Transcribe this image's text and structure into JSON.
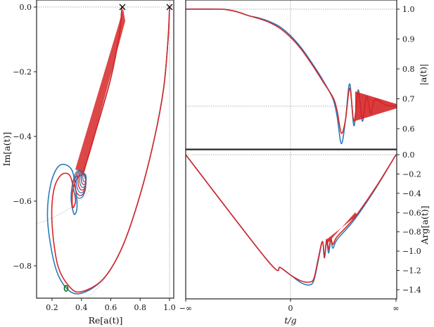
{
  "colors": {
    "blue": "#2b7bba",
    "red": "#d62728",
    "green": "#1a7a1a",
    "grid": "#999999",
    "axis": "#222222"
  },
  "chart_data": [
    {
      "type": "line",
      "panel": "left",
      "title": "",
      "xlabel": "Re[a(t)]",
      "ylabel": "Im[a(t)]",
      "xlim": [
        0.095,
        1.03
      ],
      "ylim": [
        -0.9,
        0.02
      ],
      "xticks": [
        "0.2",
        "0.4",
        "0.6",
        "0.8",
        "1.0"
      ],
      "yticks": [
        "0.0",
        "-0.2",
        "-0.4",
        "-0.6",
        "-0.8"
      ],
      "markers": [
        {
          "type": "x",
          "x": 0.675,
          "y": 0.0
        },
        {
          "type": "x",
          "x": 1.0,
          "y": 0.0
        },
        {
          "type": "circle",
          "color": "green",
          "x": 0.3,
          "y": -0.87
        }
      ],
      "reference_lines": [
        {
          "type": "horizontal",
          "y": 0.0
        },
        {
          "type": "vertical",
          "x": 1.0
        },
        {
          "type": "arc",
          "note": "dotted gray unit-magnitude reference curves"
        }
      ],
      "series": [
        {
          "name": "blue",
          "points": [
            [
              1.0,
              0.0
            ],
            [
              0.99,
              -0.1
            ],
            [
              0.96,
              -0.25
            ],
            [
              0.9,
              -0.4
            ],
            [
              0.8,
              -0.58
            ],
            [
              0.68,
              -0.74
            ],
            [
              0.55,
              -0.84
            ],
            [
              0.4,
              -0.885
            ],
            [
              0.3,
              -0.87
            ],
            [
              0.22,
              -0.8
            ],
            [
              0.17,
              -0.66
            ],
            [
              0.19,
              -0.55
            ],
            [
              0.25,
              -0.49
            ],
            [
              0.33,
              -0.5
            ],
            [
              0.36,
              -0.56
            ],
            [
              0.37,
              -0.62
            ],
            [
              0.35,
              -0.64
            ],
            [
              0.33,
              -0.59
            ],
            [
              0.35,
              -0.53
            ],
            [
              0.4,
              -0.52
            ],
            [
              0.42,
              -0.5
            ],
            [
              0.5,
              -0.38
            ],
            [
              0.6,
              -0.22
            ],
            [
              0.66,
              -0.08
            ],
            [
              0.675,
              0.0
            ]
          ]
        },
        {
          "name": "red",
          "points": [
            [
              1.0,
              0.0
            ],
            [
              0.99,
              -0.1
            ],
            [
              0.96,
              -0.25
            ],
            [
              0.9,
              -0.4
            ],
            [
              0.8,
              -0.58
            ],
            [
              0.68,
              -0.74
            ],
            [
              0.55,
              -0.84
            ],
            [
              0.4,
              -0.88
            ],
            [
              0.32,
              -0.865
            ],
            [
              0.24,
              -0.8
            ],
            [
              0.2,
              -0.67
            ],
            [
              0.21,
              -0.57
            ],
            [
              0.26,
              -0.52
            ],
            [
              0.32,
              -0.52
            ],
            [
              0.35,
              -0.57
            ],
            [
              0.36,
              -0.6
            ],
            [
              0.34,
              -0.62
            ],
            [
              0.34,
              -0.57
            ],
            [
              0.37,
              -0.53
            ],
            [
              0.42,
              -0.5
            ],
            [
              0.5,
              -0.38
            ],
            [
              0.6,
              -0.22
            ],
            [
              0.66,
              -0.08
            ],
            [
              0.675,
              0.0
            ]
          ]
        }
      ]
    },
    {
      "type": "line",
      "panel": "top-right",
      "xlabel": "",
      "ylabel": "|a(t)|",
      "xlim": [
        "-inf",
        "inf"
      ],
      "ylim": [
        0.53,
        1.03
      ],
      "yticks": [
        "0.6",
        "0.7",
        "0.8",
        "0.9",
        "1.0"
      ],
      "reference_lines": [
        {
          "type": "horizontal",
          "y": 1.0
        },
        {
          "type": "horizontal",
          "y": 0.675
        },
        {
          "type": "vertical",
          "x": 0
        }
      ],
      "series": [
        {
          "name": "blue",
          "x_frac": [
            0,
            0.15,
            0.2,
            0.25,
            0.3,
            0.35,
            0.4,
            0.45,
            0.5,
            0.55,
            0.6,
            0.65,
            0.7,
            0.72,
            0.74,
            0.76,
            0.78,
            0.8,
            0.82,
            0.84,
            0.86,
            0.88,
            0.9,
            0.95,
            1.0
          ],
          "values": [
            1.0,
            1.0,
            0.998,
            0.99,
            0.978,
            0.97,
            0.958,
            0.94,
            0.91,
            0.87,
            0.82,
            0.765,
            0.7,
            0.64,
            0.55,
            0.63,
            0.75,
            0.61,
            0.73,
            0.625,
            0.71,
            0.65,
            0.7,
            0.68,
            0.675
          ]
        },
        {
          "name": "red",
          "x_frac": [
            0,
            0.15,
            0.2,
            0.25,
            0.3,
            0.35,
            0.4,
            0.45,
            0.5,
            0.55,
            0.6,
            0.65,
            0.7,
            0.72,
            0.74,
            0.76,
            0.78,
            0.8,
            0.82,
            0.84,
            0.86,
            0.88,
            0.9,
            0.95,
            1.0
          ],
          "values": [
            1.0,
            1.0,
            0.998,
            0.99,
            0.978,
            0.968,
            0.955,
            0.935,
            0.905,
            0.865,
            0.815,
            0.76,
            0.705,
            0.66,
            0.585,
            0.63,
            0.735,
            0.625,
            0.72,
            0.635,
            0.705,
            0.655,
            0.695,
            0.68,
            0.675
          ]
        }
      ]
    },
    {
      "type": "line",
      "panel": "bottom-right",
      "xlabel": "t/g",
      "ylabel": "Arg[a(t)]",
      "xlim": [
        "-inf",
        "inf"
      ],
      "ylim": [
        -1.5,
        0.05
      ],
      "xticks": [
        "-∞",
        "0",
        "∞"
      ],
      "yticks": [
        "0.0",
        "-0.2",
        "-0.4",
        "-0.6",
        "-0.8",
        "-1.0",
        "-1.2",
        "-1.4"
      ],
      "reference_lines": [
        {
          "type": "horizontal",
          "y": 0.0
        },
        {
          "type": "vertical",
          "x": 0
        }
      ],
      "series": [
        {
          "name": "blue",
          "x_frac": [
            0,
            0.39,
            0.45,
            0.5,
            0.55,
            0.59,
            0.61,
            0.63,
            0.65,
            0.66,
            0.67,
            0.68,
            0.69,
            0.7,
            0.72,
            0.8,
            0.9,
            1.0
          ],
          "values": [
            0.0,
            -1.1,
            -1.17,
            -1.25,
            -1.33,
            -1.35,
            -1.3,
            -1.1,
            -0.9,
            -1.05,
            -0.9,
            -1.02,
            -0.88,
            -0.97,
            -0.88,
            -0.68,
            -0.36,
            0.0
          ]
        },
        {
          "name": "red",
          "x_frac": [
            0,
            0.39,
            0.45,
            0.5,
            0.55,
            0.59,
            0.61,
            0.63,
            0.65,
            0.66,
            0.67,
            0.68,
            0.69,
            0.7,
            0.72,
            0.8,
            0.9,
            1.0
          ],
          "values": [
            0.0,
            -1.1,
            -1.17,
            -1.25,
            -1.31,
            -1.32,
            -1.28,
            -1.08,
            -0.9,
            -1.07,
            -0.88,
            -0.98,
            -0.87,
            -0.93,
            -0.85,
            -0.66,
            -0.35,
            0.0
          ]
        }
      ]
    }
  ]
}
